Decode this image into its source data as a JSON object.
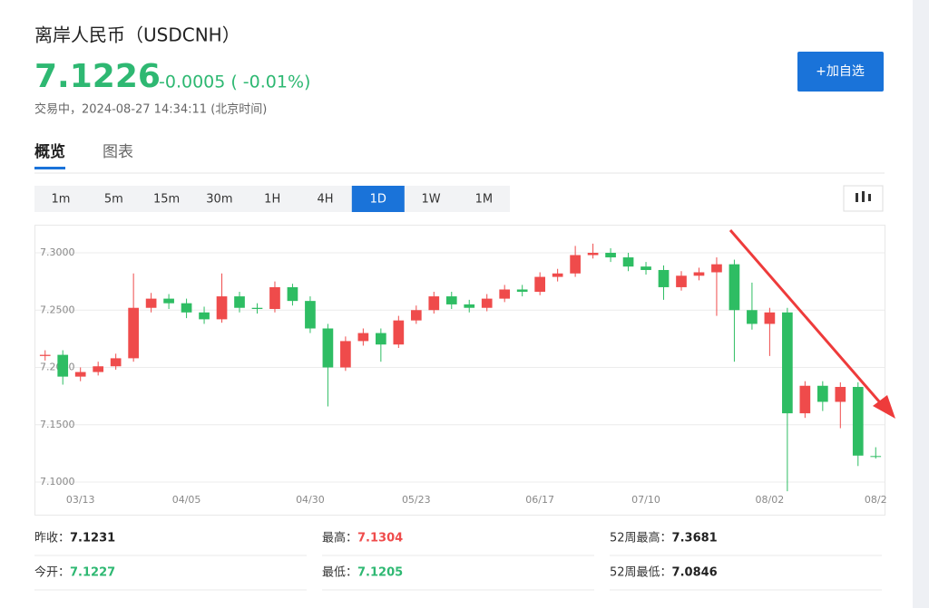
{
  "header": {
    "title": "离岸人民币（USDCNH）",
    "price": "7.1226",
    "change": "-0.0005",
    "change_pct": "( -0.01%)",
    "status": "交易中，2024-08-27 14:34:11 (北京时间)",
    "button": "+加自选"
  },
  "tabs": [
    "概览",
    "图表"
  ],
  "periods": {
    "items": [
      "1m",
      "5m",
      "15m",
      "30m",
      "1H",
      "4H",
      "1D",
      "1W",
      "1M"
    ],
    "active": 6
  },
  "chart_data": {
    "type": "candlestick",
    "categories": [
      null,
      null,
      "03/13",
      null,
      null,
      null,
      null,
      null,
      "04/05",
      null,
      null,
      null,
      null,
      null,
      null,
      "04/30",
      null,
      null,
      null,
      null,
      null,
      "05/23",
      null,
      null,
      null,
      null,
      null,
      null,
      "06/17",
      null,
      null,
      null,
      null,
      null,
      "07/10",
      null,
      null,
      null,
      null,
      null,
      null,
      "08/02",
      null,
      null,
      null,
      null,
      null,
      "08/2"
    ],
    "open": [
      7.21,
      7.211,
      7.192,
      7.196,
      7.201,
      7.208,
      7.252,
      7.26,
      7.256,
      7.248,
      7.242,
      7.262,
      7.252,
      7.251,
      7.27,
      7.258,
      7.234,
      7.2,
      7.223,
      7.23,
      7.22,
      7.241,
      7.25,
      7.262,
      7.255,
      7.252,
      7.26,
      7.268,
      7.266,
      7.279,
      7.282,
      7.298,
      7.3,
      7.296,
      7.288,
      7.285,
      7.27,
      7.28,
      7.283,
      7.29,
      7.25,
      7.238,
      7.248,
      7.16,
      7.184,
      7.17,
      7.183,
      7.1227
    ],
    "high": [
      7.215,
      7.215,
      7.2,
      7.205,
      7.212,
      7.282,
      7.265,
      7.264,
      7.26,
      7.253,
      7.282,
      7.266,
      7.256,
      7.275,
      7.273,
      7.262,
      7.238,
      7.227,
      7.234,
      7.234,
      7.245,
      7.254,
      7.266,
      7.266,
      7.259,
      7.264,
      7.272,
      7.272,
      7.283,
      7.286,
      7.306,
      7.308,
      7.304,
      7.3,
      7.292,
      7.289,
      7.284,
      7.287,
      7.296,
      7.294,
      7.274,
      7.252,
      7.252,
      7.188,
      7.188,
      7.187,
      7.187,
      7.1304
    ],
    "low": [
      7.206,
      7.185,
      7.188,
      7.193,
      7.198,
      7.205,
      7.248,
      7.251,
      7.243,
      7.238,
      7.239,
      7.248,
      7.247,
      7.248,
      7.254,
      7.23,
      7.166,
      7.197,
      7.219,
      7.205,
      7.217,
      7.238,
      7.247,
      7.251,
      7.248,
      7.249,
      7.257,
      7.262,
      7.263,
      7.275,
      7.279,
      7.295,
      7.292,
      7.284,
      7.281,
      7.259,
      7.267,
      7.276,
      7.245,
      7.205,
      7.233,
      7.21,
      7.092,
      7.156,
      7.162,
      7.147,
      7.114,
      7.1205
    ],
    "close": [
      7.211,
      7.192,
      7.196,
      7.201,
      7.208,
      7.252,
      7.26,
      7.256,
      7.248,
      7.242,
      7.262,
      7.252,
      7.251,
      7.27,
      7.258,
      7.234,
      7.2,
      7.223,
      7.23,
      7.22,
      7.241,
      7.25,
      7.262,
      7.255,
      7.252,
      7.26,
      7.268,
      7.266,
      7.279,
      7.282,
      7.298,
      7.3,
      7.296,
      7.288,
      7.285,
      7.27,
      7.28,
      7.283,
      7.29,
      7.25,
      7.238,
      7.248,
      7.16,
      7.184,
      7.17,
      7.183,
      7.1231,
      7.1226
    ],
    "ylim": [
      7.0937,
      7.3245
    ],
    "yticks": [
      {
        "value": 7.1,
        "label": "7.1000"
      },
      {
        "value": 7.15,
        "label": "7.1500"
      },
      {
        "value": 7.2,
        "label": "7.2000"
      },
      {
        "value": 7.25,
        "label": "7.2500"
      },
      {
        "value": 7.3,
        "label": "7.3000"
      }
    ],
    "grid": true,
    "up_color": "#ef4b4b",
    "down_color": "#2ebd63"
  },
  "stats": [
    [
      {
        "label": "昨收：",
        "value": "7.1231"
      },
      {
        "label": "最高：",
        "value": "7.1304",
        "color": "#ef4b4b"
      },
      {
        "label": "52周最高：",
        "value": "7.3681"
      }
    ],
    [
      {
        "label": "今开：",
        "value": "7.1227",
        "color": "#2eb872"
      },
      {
        "label": "最低：",
        "value": "7.1205",
        "color": "#2eb872"
      },
      {
        "label": "52周最低：",
        "value": "7.0846"
      }
    ]
  ]
}
